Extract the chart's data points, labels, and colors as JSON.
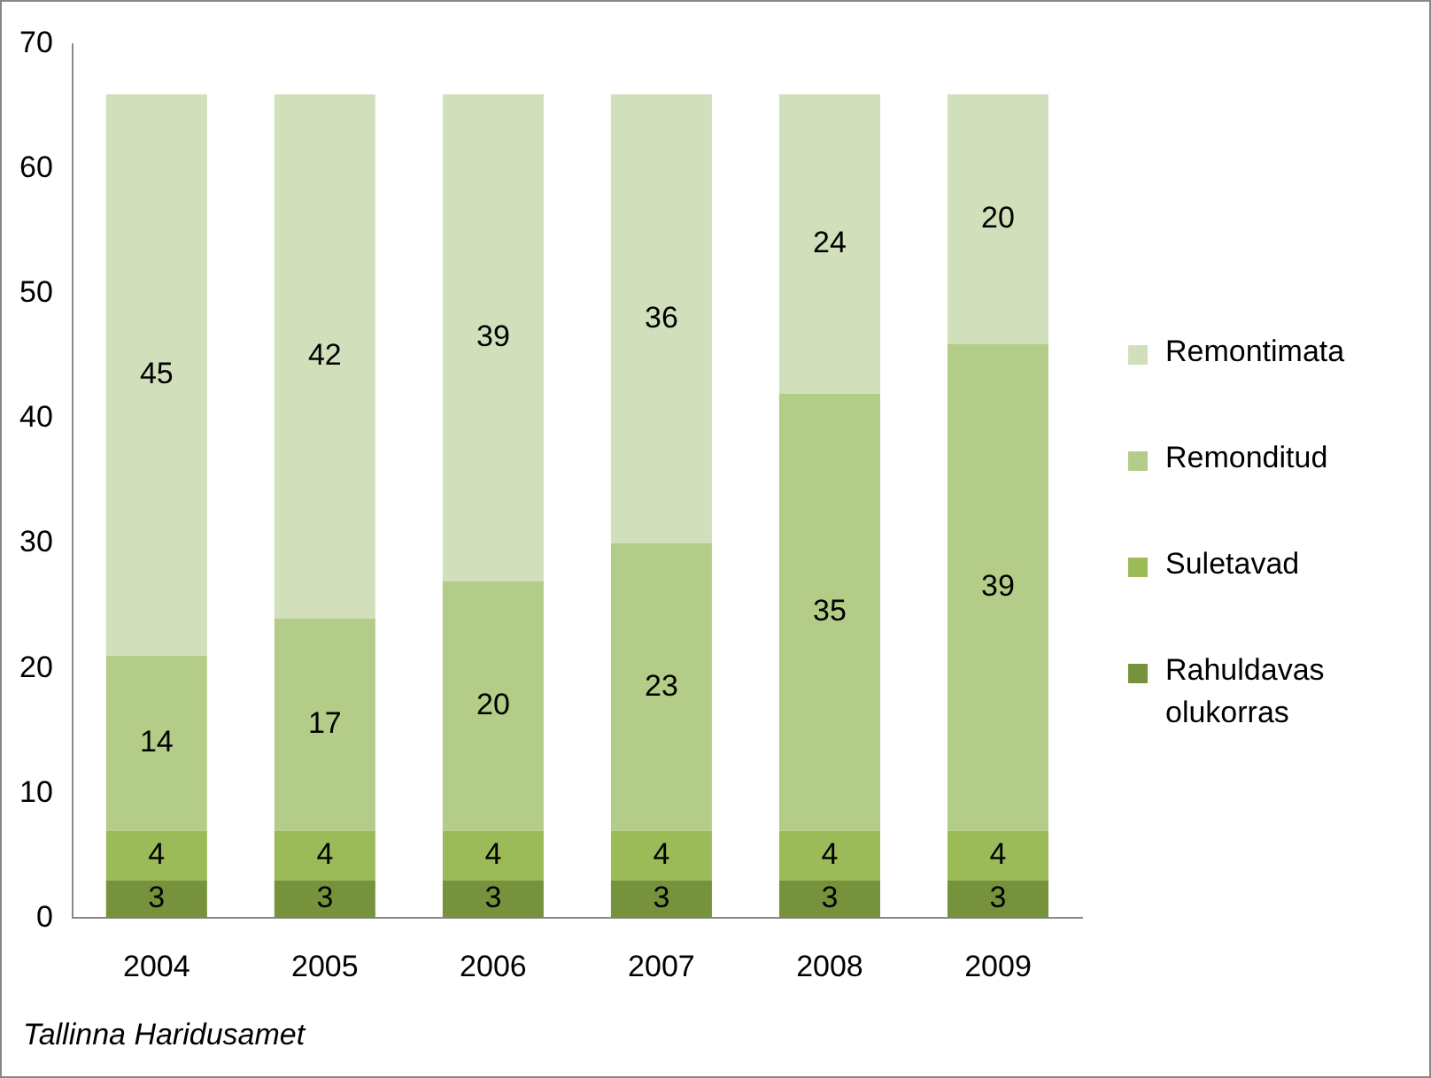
{
  "chart_data": {
    "type": "bar",
    "stacked": true,
    "categories": [
      "2004",
      "2005",
      "2006",
      "2007",
      "2008",
      "2009"
    ],
    "series": [
      {
        "name": "Rahuldavas olukorras",
        "color": "#76923c",
        "values": [
          3,
          3,
          3,
          3,
          3,
          3
        ]
      },
      {
        "name": "Suletavad",
        "color": "#9bbb59",
        "values": [
          4,
          4,
          4,
          4,
          4,
          4
        ]
      },
      {
        "name": "Remonditud",
        "color": "#b3cc87",
        "values": [
          14,
          17,
          20,
          23,
          35,
          39
        ]
      },
      {
        "name": "Remontimata",
        "color": "#d1dfbb",
        "values": [
          45,
          42,
          39,
          36,
          24,
          20
        ]
      }
    ],
    "ylim": [
      0,
      70
    ],
    "yticks": [
      0,
      10,
      20,
      30,
      40,
      50,
      60,
      70
    ],
    "grid": false,
    "legend": "right",
    "data_labels": true,
    "annotations": [
      "Tallinna Haridusamet"
    ]
  }
}
